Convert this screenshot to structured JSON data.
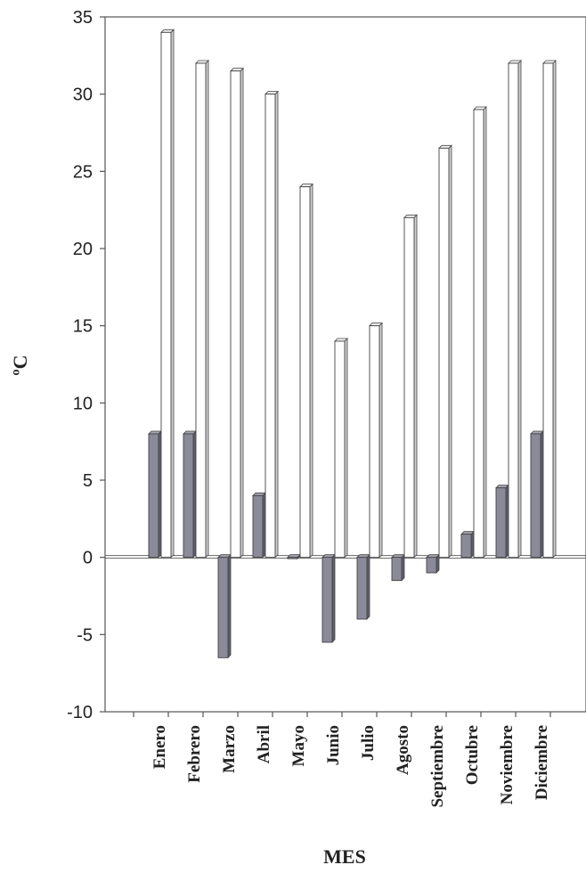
{
  "chart_data": {
    "type": "bar",
    "categories": [
      "Enero",
      "Febrero",
      "Marzo",
      "Abril",
      "Mayo",
      "Junio",
      "Julio",
      "Agosto",
      "Septiembre",
      "Octubre",
      "Noviembre",
      "Diciembre"
    ],
    "series": [
      {
        "values": [
          8,
          8,
          -6.5,
          4,
          0,
          -5.5,
          -4,
          -1.5,
          -1,
          1.5,
          4.5,
          8
        ],
        "color": "#8a8a99"
      },
      {
        "values": [
          34,
          32,
          31.5,
          30,
          24,
          14,
          15,
          22,
          26.5,
          29,
          32,
          32
        ],
        "color": "#ffffff"
      }
    ],
    "xlabel": "MES",
    "ylabel": "ºC",
    "ylim": [
      -10,
      35
    ],
    "yticks": [
      -10,
      -5,
      0,
      5,
      10,
      15,
      20,
      25,
      30,
      35
    ],
    "grid": false,
    "legend": "none"
  }
}
